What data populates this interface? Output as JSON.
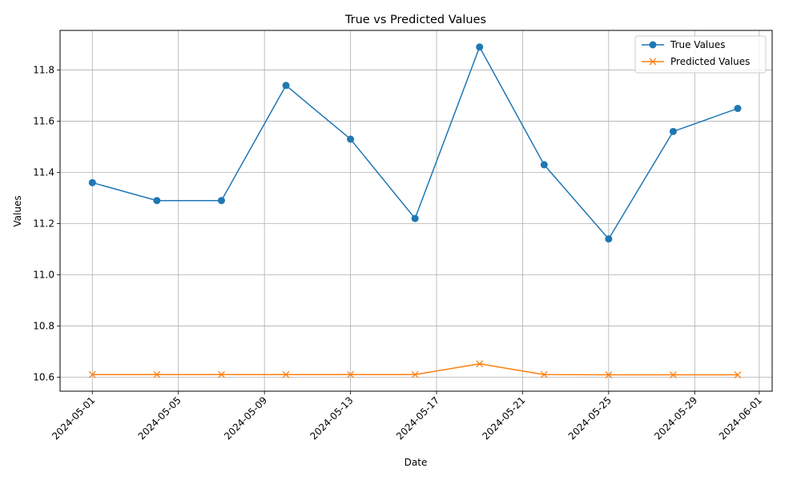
{
  "chart_data": {
    "type": "line",
    "title": "True vs Predicted Values",
    "xlabel": "Date",
    "ylabel": "Values",
    "x": [
      "2024-05-01",
      "2024-05-04",
      "2024-05-07",
      "2024-05-10",
      "2024-05-13",
      "2024-05-16",
      "2024-05-19",
      "2024-05-22",
      "2024-05-25",
      "2024-05-28",
      "2024-05-31"
    ],
    "x_ticks": [
      "2024-05-01",
      "2024-05-05",
      "2024-05-09",
      "2024-05-13",
      "2024-05-17",
      "2024-05-21",
      "2024-05-25",
      "2024-05-29",
      "2024-06-01"
    ],
    "xlim": [
      "2024-04-29.5",
      "2024-06-01.6"
    ],
    "y_ticks": [
      10.6,
      10.8,
      11.0,
      11.2,
      11.4,
      11.6,
      11.8
    ],
    "y_tick_labels": [
      "10.6",
      "10.8",
      "11.0",
      "11.2",
      "11.4",
      "11.6",
      "11.8"
    ],
    "ylim": [
      10.545,
      11.955
    ],
    "grid": true,
    "legend_position": "top-right",
    "series": [
      {
        "name": "True Values",
        "marker": "circle",
        "color": "#1f77b4",
        "values": [
          11.36,
          11.29,
          11.29,
          11.74,
          11.53,
          11.22,
          11.89,
          11.43,
          11.14,
          11.56,
          11.65
        ]
      },
      {
        "name": "Predicted Values",
        "marker": "x",
        "color": "#ff7f0e",
        "values": [
          10.61,
          10.61,
          10.61,
          10.61,
          10.61,
          10.61,
          10.652,
          10.61,
          10.609,
          10.609,
          10.609
        ]
      }
    ]
  }
}
